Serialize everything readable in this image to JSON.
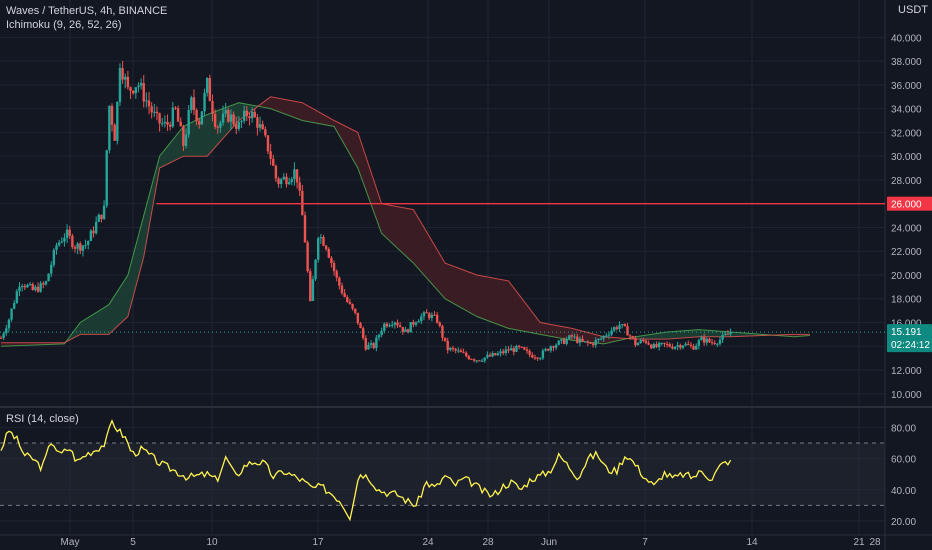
{
  "header": {
    "symbol_line": "Waves / TetherUS, 4h, BINANCE",
    "indicator_line": "Ichimoku (9, 26, 52, 26)",
    "rsi_line": "RSI (14, close)",
    "currency": "USDT"
  },
  "colors": {
    "background": "#131722",
    "grid": "#1f2433",
    "up": "#26a69a",
    "down": "#ef5350",
    "kumo_bull_fill": "#1b3b33",
    "kumo_bear_fill": "#3a1d24",
    "span_a": "#4caf50",
    "span_b": "#ef5350",
    "resistance": "#f23645",
    "price_label": "#0f8a80",
    "rsi_line": "#fff44f",
    "axis_text": "#b2b5be"
  },
  "chart_data": [
    {
      "type": "candlestick",
      "title": "Waves / TetherUS, 4h, BINANCE",
      "ylabel": "USDT",
      "ylim": [
        9.0,
        41.5
      ],
      "y_ticks": [
        "40.000",
        "38.000",
        "36.000",
        "34.000",
        "32.000",
        "30.000",
        "28.000",
        "26.000",
        "24.000",
        "22.000",
        "20.000",
        "18.000",
        "16.000",
        "14.000",
        "12.000",
        "10.000"
      ],
      "x_ticks": [
        "May",
        "5",
        "10",
        "17",
        "24",
        "28",
        "Jun",
        "7",
        "14",
        "21",
        "28"
      ],
      "grid": true,
      "price_anchors": [
        {
          "day": 0,
          "close": 14.7
        },
        {
          "day": 0.5,
          "close": 16.3
        },
        {
          "day": 1.2,
          "close": 19.5
        },
        {
          "day": 2,
          "close": 18.7
        },
        {
          "day": 2.8,
          "close": 19.2
        },
        {
          "day": 3.5,
          "close": 22.5
        },
        {
          "day": 4.1,
          "close": 23.5
        },
        {
          "day": 4.7,
          "close": 22.4
        },
        {
          "day": 5.4,
          "close": 22.6
        },
        {
          "day": 6.1,
          "close": 24.6
        },
        {
          "day": 6.5,
          "close": 25.5
        },
        {
          "day": 6.8,
          "close": 34.5
        },
        {
          "day": 7.2,
          "close": 31.5
        },
        {
          "day": 7.5,
          "close": 38.0
        },
        {
          "day": 8.0,
          "close": 35.5
        },
        {
          "day": 8.6,
          "close": 36.2
        },
        {
          "day": 9.2,
          "close": 34.6
        },
        {
          "day": 9.8,
          "close": 33.0
        },
        {
          "day": 10.4,
          "close": 32.5
        },
        {
          "day": 11.0,
          "close": 33.8
        },
        {
          "day": 11.5,
          "close": 31.0
        },
        {
          "day": 12.0,
          "close": 34.5
        },
        {
          "day": 12.5,
          "close": 33.0
        },
        {
          "day": 13.0,
          "close": 36.0
        },
        {
          "day": 13.6,
          "close": 32.5
        },
        {
          "day": 14.3,
          "close": 33.5
        },
        {
          "day": 15.0,
          "close": 32.5
        },
        {
          "day": 15.6,
          "close": 33.8
        },
        {
          "day": 16.2,
          "close": 32.8
        },
        {
          "day": 16.9,
          "close": 30.5
        },
        {
          "day": 17.4,
          "close": 27.8
        },
        {
          "day": 18.0,
          "close": 28.2
        },
        {
          "day": 18.6,
          "close": 28.8
        },
        {
          "day": 19.1,
          "close": 24.0
        },
        {
          "day": 19.5,
          "close": 17.5
        },
        {
          "day": 20.0,
          "close": 23.5
        },
        {
          "day": 20.5,
          "close": 22.5
        },
        {
          "day": 21.2,
          "close": 19.5
        },
        {
          "day": 21.8,
          "close": 17.8
        },
        {
          "day": 22.4,
          "close": 16.5
        },
        {
          "day": 23.0,
          "close": 14.0
        },
        {
          "day": 23.5,
          "close": 14.0
        },
        {
          "day": 24.1,
          "close": 15.8
        },
        {
          "day": 24.8,
          "close": 16.2
        },
        {
          "day": 25.5,
          "close": 15.2
        },
        {
          "day": 26.2,
          "close": 16.3
        },
        {
          "day": 26.9,
          "close": 16.7
        },
        {
          "day": 27.5,
          "close": 16.2
        },
        {
          "day": 28.1,
          "close": 13.8
        },
        {
          "day": 28.7,
          "close": 13.6
        },
        {
          "day": 29.3,
          "close": 13.2
        },
        {
          "day": 30.0,
          "close": 12.9
        },
        {
          "day": 30.7,
          "close": 13.1
        },
        {
          "day": 31.3,
          "close": 13.3
        },
        {
          "day": 32.0,
          "close": 13.7
        },
        {
          "day": 32.7,
          "close": 13.8
        },
        {
          "day": 33.3,
          "close": 13.3
        },
        {
          "day": 34.0,
          "close": 13.2
        },
        {
          "day": 34.7,
          "close": 14.1
        },
        {
          "day": 35.3,
          "close": 14.3
        },
        {
          "day": 36.0,
          "close": 14.8
        },
        {
          "day": 36.6,
          "close": 14.3
        },
        {
          "day": 37.2,
          "close": 14.2
        },
        {
          "day": 37.8,
          "close": 14.6
        },
        {
          "day": 38.4,
          "close": 15.3
        },
        {
          "day": 39.0,
          "close": 15.8
        },
        {
          "day": 39.5,
          "close": 15.2
        },
        {
          "day": 40.0,
          "close": 14.2
        },
        {
          "day": 40.6,
          "close": 14.5
        },
        {
          "day": 41.2,
          "close": 13.9
        },
        {
          "day": 41.8,
          "close": 14.1
        },
        {
          "day": 42.4,
          "close": 14.0
        },
        {
          "day": 43.0,
          "close": 14.2
        },
        {
          "day": 43.6,
          "close": 13.9
        },
        {
          "day": 44.2,
          "close": 14.6
        },
        {
          "day": 44.8,
          "close": 14.3
        },
        {
          "day": 45.4,
          "close": 14.6
        },
        {
          "day": 46.0,
          "close": 15.19
        }
      ],
      "ichimoku": {
        "tenkan": [
          9,
          26,
          52,
          26
        ],
        "span_a": [
          {
            "day": 0,
            "value": 14.0
          },
          {
            "day": 4,
            "value": 14.2
          },
          {
            "day": 5,
            "value": 16.0
          },
          {
            "day": 6.8,
            "value": 17.5
          },
          {
            "day": 8.0,
            "value": 20.0
          },
          {
            "day": 9.0,
            "value": 25.0
          },
          {
            "day": 10.0,
            "value": 30.0
          },
          {
            "day": 11.5,
            "value": 32.5
          },
          {
            "day": 13.0,
            "value": 33.5
          },
          {
            "day": 15.0,
            "value": 34.5
          },
          {
            "day": 17.0,
            "value": 34.0
          },
          {
            "day": 19.0,
            "value": 33.0
          },
          {
            "day": 21.0,
            "value": 32.5
          },
          {
            "day": 22.5,
            "value": 29.0
          },
          {
            "day": 24.0,
            "value": 23.5
          },
          {
            "day": 26.0,
            "value": 21.0
          },
          {
            "day": 28.0,
            "value": 18.0
          },
          {
            "day": 30.0,
            "value": 16.5
          },
          {
            "day": 32.0,
            "value": 15.5
          },
          {
            "day": 34.0,
            "value": 15.0
          },
          {
            "day": 36.0,
            "value": 14.5
          },
          {
            "day": 38.0,
            "value": 14.2
          },
          {
            "day": 40.0,
            "value": 14.8
          },
          {
            "day": 42.0,
            "value": 15.2
          },
          {
            "day": 44.0,
            "value": 15.4
          },
          {
            "day": 46.0,
            "value": 15.2
          },
          {
            "day": 48.0,
            "value": 15.0
          },
          {
            "day": 50.0,
            "value": 14.8
          },
          {
            "day": 51.0,
            "value": 14.9
          }
        ],
        "span_b": [
          {
            "day": 0,
            "value": 14.3
          },
          {
            "day": 4,
            "value": 14.3
          },
          {
            "day": 5,
            "value": 15.0
          },
          {
            "day": 6.8,
            "value": 15.0
          },
          {
            "day": 8.0,
            "value": 16.5
          },
          {
            "day": 9.0,
            "value": 21.5
          },
          {
            "day": 10.0,
            "value": 29.0
          },
          {
            "day": 11.5,
            "value": 30.0
          },
          {
            "day": 13.0,
            "value": 30.0
          },
          {
            "day": 15.0,
            "value": 33.0
          },
          {
            "day": 17.0,
            "value": 35.0
          },
          {
            "day": 19.0,
            "value": 34.5
          },
          {
            "day": 21.0,
            "value": 33.0
          },
          {
            "day": 22.5,
            "value": 32.0
          },
          {
            "day": 24.0,
            "value": 26.0
          },
          {
            "day": 26.0,
            "value": 25.5
          },
          {
            "day": 28.0,
            "value": 21.0
          },
          {
            "day": 30.0,
            "value": 20.0
          },
          {
            "day": 32.0,
            "value": 19.5
          },
          {
            "day": 34.0,
            "value": 16.0
          },
          {
            "day": 36.0,
            "value": 15.5
          },
          {
            "day": 38.0,
            "value": 14.8
          },
          {
            "day": 40.0,
            "value": 14.6
          },
          {
            "day": 42.0,
            "value": 14.6
          },
          {
            "day": 44.0,
            "value": 14.8
          },
          {
            "day": 46.0,
            "value": 14.8
          },
          {
            "day": 48.0,
            "value": 14.9
          },
          {
            "day": 50.0,
            "value": 15.0
          },
          {
            "day": 51.0,
            "value": 15.0
          }
        ]
      },
      "annotations": [
        {
          "kind": "horizontal-line",
          "label": "resistance",
          "value": 26.0,
          "from_day": 9.8
        },
        {
          "kind": "last-price",
          "value": 15.19
        }
      ],
      "price_label": "15.191",
      "countdown_label": "02:24:12"
    },
    {
      "type": "line",
      "title": "RSI (14, close)",
      "ylim": [
        17,
        88
      ],
      "y_ticks": [
        "80.00",
        "60.00",
        "40.00",
        "20.00"
      ],
      "band": [
        30,
        70
      ],
      "series": [
        {
          "points": [
            {
              "day": 0,
              "value": 66
            },
            {
              "day": 0.5,
              "value": 78
            },
            {
              "day": 1.0,
              "value": 72
            },
            {
              "day": 1.5,
              "value": 62
            },
            {
              "day": 2.0,
              "value": 60
            },
            {
              "day": 2.6,
              "value": 54
            },
            {
              "day": 3.2,
              "value": 72
            },
            {
              "day": 3.7,
              "value": 62
            },
            {
              "day": 4.3,
              "value": 67
            },
            {
              "day": 4.8,
              "value": 58
            },
            {
              "day": 5.4,
              "value": 63
            },
            {
              "day": 6.0,
              "value": 66
            },
            {
              "day": 6.6,
              "value": 70
            },
            {
              "day": 7.0,
              "value": 84
            },
            {
              "day": 7.4,
              "value": 78
            },
            {
              "day": 7.8,
              "value": 74
            },
            {
              "day": 8.3,
              "value": 63
            },
            {
              "day": 8.9,
              "value": 66
            },
            {
              "day": 9.4,
              "value": 62
            },
            {
              "day": 10.0,
              "value": 57
            },
            {
              "day": 10.6,
              "value": 54
            },
            {
              "day": 11.2,
              "value": 51
            },
            {
              "day": 11.8,
              "value": 48
            },
            {
              "day": 12.4,
              "value": 49
            },
            {
              "day": 13.0,
              "value": 50
            },
            {
              "day": 13.6,
              "value": 46
            },
            {
              "day": 14.2,
              "value": 61
            },
            {
              "day": 14.8,
              "value": 48
            },
            {
              "day": 15.4,
              "value": 56
            },
            {
              "day": 16.0,
              "value": 58
            },
            {
              "day": 16.6,
              "value": 57
            },
            {
              "day": 17.2,
              "value": 48
            },
            {
              "day": 17.8,
              "value": 52
            },
            {
              "day": 18.4,
              "value": 49
            },
            {
              "day": 19.0,
              "value": 46
            },
            {
              "day": 19.6,
              "value": 41
            },
            {
              "day": 20.2,
              "value": 42
            },
            {
              "day": 20.8,
              "value": 38
            },
            {
              "day": 21.4,
              "value": 33
            },
            {
              "day": 22.0,
              "value": 23
            },
            {
              "day": 22.6,
              "value": 51
            },
            {
              "day": 23.2,
              "value": 48
            },
            {
              "day": 23.8,
              "value": 40
            },
            {
              "day": 24.4,
              "value": 38
            },
            {
              "day": 25.0,
              "value": 37
            },
            {
              "day": 25.6,
              "value": 33
            },
            {
              "day": 26.2,
              "value": 30
            },
            {
              "day": 26.8,
              "value": 45
            },
            {
              "day": 27.4,
              "value": 41
            },
            {
              "day": 28.0,
              "value": 49
            },
            {
              "day": 28.6,
              "value": 43
            },
            {
              "day": 29.2,
              "value": 47
            },
            {
              "day": 29.8,
              "value": 44
            },
            {
              "day": 30.4,
              "value": 39
            },
            {
              "day": 31.0,
              "value": 36
            },
            {
              "day": 31.6,
              "value": 42
            },
            {
              "day": 32.2,
              "value": 45
            },
            {
              "day": 32.8,
              "value": 40
            },
            {
              "day": 33.4,
              "value": 47
            },
            {
              "day": 34.0,
              "value": 49
            },
            {
              "day": 34.6,
              "value": 52
            },
            {
              "day": 35.2,
              "value": 62
            },
            {
              "day": 35.8,
              "value": 55
            },
            {
              "day": 36.4,
              "value": 48
            },
            {
              "day": 37.0,
              "value": 60
            },
            {
              "day": 37.6,
              "value": 63
            },
            {
              "day": 38.2,
              "value": 53
            },
            {
              "day": 38.8,
              "value": 52
            },
            {
              "day": 39.4,
              "value": 63
            },
            {
              "day": 40.0,
              "value": 56
            },
            {
              "day": 40.6,
              "value": 48
            },
            {
              "day": 41.2,
              "value": 42
            },
            {
              "day": 41.8,
              "value": 51
            },
            {
              "day": 42.4,
              "value": 47
            },
            {
              "day": 43.0,
              "value": 50
            },
            {
              "day": 43.6,
              "value": 48
            },
            {
              "day": 44.2,
              "value": 52
            },
            {
              "day": 44.8,
              "value": 47
            },
            {
              "day": 45.4,
              "value": 56
            },
            {
              "day": 46.0,
              "value": 59
            }
          ]
        }
      ]
    }
  ]
}
